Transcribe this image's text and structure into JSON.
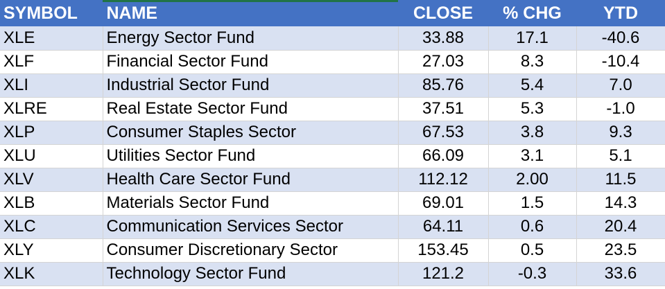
{
  "table": {
    "headers": {
      "symbol": "SYMBOL",
      "name": "NAME",
      "close": "CLOSE",
      "chg": "% CHG",
      "ytd": "YTD"
    },
    "rows": [
      {
        "symbol": "XLE",
        "name": "Energy Sector Fund",
        "close": "33.88",
        "chg": "17.1",
        "ytd": "-40.6"
      },
      {
        "symbol": "XLF",
        "name": "Financial Sector Fund",
        "close": "27.03",
        "chg": "8.3",
        "ytd": "-10.4"
      },
      {
        "symbol": "XLI",
        "name": "Industrial Sector Fund",
        "close": "85.76",
        "chg": "5.4",
        "ytd": "7.0"
      },
      {
        "symbol": "XLRE",
        "name": "Real Estate Sector Fund",
        "close": "37.51",
        "chg": "5.3",
        "ytd": "-1.0"
      },
      {
        "symbol": "XLP",
        "name": "Consumer Staples Sector",
        "close": "67.53",
        "chg": "3.8",
        "ytd": "9.3"
      },
      {
        "symbol": "XLU",
        "name": "Utilities Sector Fund",
        "close": "66.09",
        "chg": "3.1",
        "ytd": "5.1"
      },
      {
        "symbol": "XLV",
        "name": "Health Care Sector Fund",
        "close": "112.12",
        "chg": "2.00",
        "ytd": "11.5"
      },
      {
        "symbol": "XLB",
        "name": "Materials Sector Fund",
        "close": "69.01",
        "chg": "1.5",
        "ytd": "14.3"
      },
      {
        "symbol": "XLC",
        "name": "Communication Services Sector",
        "close": "64.11",
        "chg": "0.6",
        "ytd": "20.4"
      },
      {
        "symbol": "XLY",
        "name": "Consumer Discretionary Sector",
        "close": "153.45",
        "chg": "0.5",
        "ytd": "23.5"
      },
      {
        "symbol": "XLK",
        "name": "Technology Sector Fund",
        "close": "121.2",
        "chg": "-0.3",
        "ytd": "33.6"
      }
    ]
  },
  "colors": {
    "header_bg": "#4472c4",
    "header_text": "#ffffff",
    "band_row": "#d9e1f2",
    "plain_row": "#ffffff",
    "selection": "#217346"
  }
}
